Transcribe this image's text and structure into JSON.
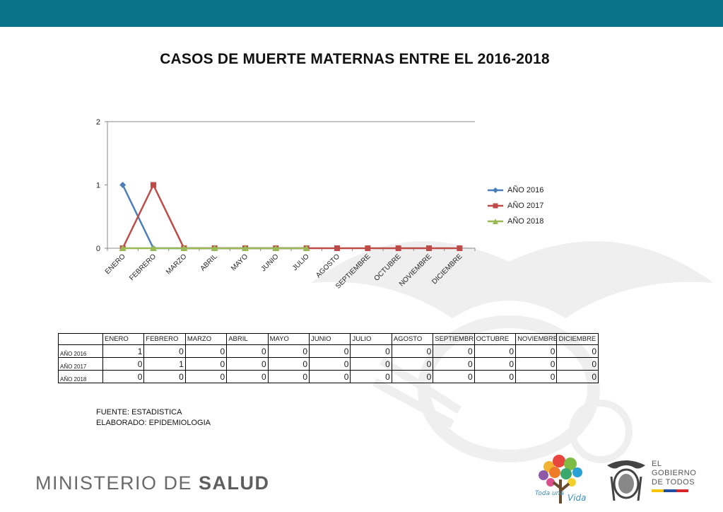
{
  "page": {
    "title": "CASOS DE MUERTE MATERNAS ENTRE EL 2016-2018",
    "source_line1": "FUENTE: ESTADISTICA",
    "source_line2": "ELABORADO: EPIDEMIOLOGIA",
    "ministry_light": "MINISTERIO DE ",
    "ministry_bold": "SALUD",
    "gov_line1": "EL",
    "gov_line2": "GOBIERNO",
    "gov_line3": "DE TODOS",
    "logo_text_left": "Toda una",
    "logo_text_right": "Vida",
    "colors": {
      "header_bar": "#0b7389",
      "gov_stripe": [
        "#f6c700",
        "#1f4fa3",
        "#d6262c"
      ]
    }
  },
  "chart_data": {
    "type": "line",
    "title": "",
    "xlabel": "",
    "ylabel": "",
    "ylim": [
      0,
      2
    ],
    "yticks": [
      0,
      1,
      2
    ],
    "grid": false,
    "legend": "right",
    "categories": [
      "ENERO",
      "FEBRERO",
      "MARZO",
      "ABRIL",
      "MAYO",
      "JUNIO",
      "JULIO",
      "AGOSTO",
      "SEPTIEMBRE",
      "OCTUBRE",
      "NOVIEMBRE",
      "DICIEMBRE"
    ],
    "series": [
      {
        "name": "AÑO 2016",
        "color": "#4a7ebb",
        "marker": "diamond",
        "values": [
          1,
          0,
          0,
          0,
          0,
          0,
          0,
          null,
          null,
          null,
          null,
          null
        ]
      },
      {
        "name": "AÑO 2017",
        "color": "#be4b48",
        "marker": "square",
        "values": [
          0,
          1,
          0,
          0,
          0,
          0,
          0,
          0,
          0,
          0,
          0,
          0
        ]
      },
      {
        "name": "AÑO 2018",
        "color": "#98b954",
        "marker": "triangle",
        "values": [
          0,
          0,
          0,
          0,
          0,
          0,
          0,
          null,
          null,
          null,
          null,
          null
        ]
      }
    ]
  },
  "table": {
    "headers": [
      "ENERO",
      "FEBRERO",
      "MARZO",
      "ABRIL",
      "MAYO",
      "JUNIO",
      "JULIO",
      "AGOSTO",
      "SEPTIEMBRE",
      "OCTUBRE",
      "NOVIEMBRE",
      "DICIEMBRE"
    ],
    "rows": [
      {
        "label": "AÑO 2016",
        "values": [
          "1",
          "0",
          "0",
          "0",
          "0",
          "0",
          "0",
          "0",
          "0",
          "0",
          "0",
          "0"
        ]
      },
      {
        "label": "AÑO 2017",
        "values": [
          "0",
          "1",
          "0",
          "0",
          "0",
          "0",
          "0",
          "0",
          "0",
          "0",
          "0",
          "0"
        ]
      },
      {
        "label": "AÑO 2018",
        "values": [
          "0",
          "0",
          "0",
          "0",
          "0",
          "0",
          "0",
          "0",
          "0",
          "0",
          "0",
          "0"
        ]
      }
    ]
  }
}
